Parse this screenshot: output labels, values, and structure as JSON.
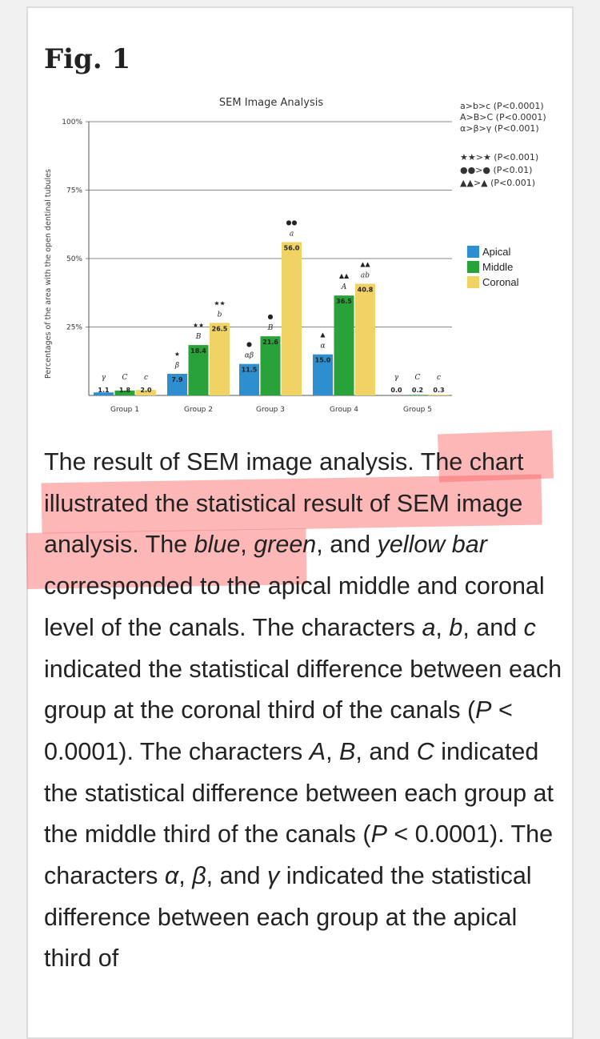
{
  "figure": {
    "title": "Fig. 1"
  },
  "chart_data": {
    "type": "bar",
    "title": "SEM Image Analysis",
    "ylabel": "Percentages of the area with the open dentinal tubules",
    "xlabel": "",
    "ylim": [
      0,
      100
    ],
    "yticks": [
      "100%",
      "75%",
      "50%",
      "25%"
    ],
    "grid": true,
    "legend_position": "right",
    "categories": [
      "Group 1",
      "Group 2",
      "Group 3",
      "Group 4",
      "Group 5"
    ],
    "series": [
      {
        "name": "Apical",
        "color": "#2e8fd0",
        "values": [
          1.1,
          7.9,
          11.5,
          15.0,
          0.0
        ],
        "labels": [
          "1.1",
          "7.9",
          "11.5",
          "15.0",
          "0.0"
        ]
      },
      {
        "name": "Middle",
        "color": "#2aa23a",
        "values": [
          1.8,
          18.4,
          21.6,
          36.5,
          0.2
        ],
        "labels": [
          "1.8",
          "18.4",
          "21.6",
          "36.5",
          "0.2"
        ]
      },
      {
        "name": "Coronal",
        "color": "#f1d264",
        "values": [
          2.0,
          26.5,
          56.0,
          40.8,
          0.3
        ],
        "labels": [
          "2.0",
          "26.5",
          "56.0",
          "40.8",
          "0.3"
        ]
      }
    ],
    "letters": [
      [
        "γ",
        "C",
        "c"
      ],
      [
        "β",
        "B",
        "b"
      ],
      [
        "αβ",
        "B",
        "a"
      ],
      [
        "α",
        "A",
        "ab"
      ],
      [
        "γ",
        "C",
        "c"
      ]
    ],
    "symbols": [
      [
        "",
        "",
        ""
      ],
      [
        "★",
        "★★",
        "★★"
      ],
      [
        "●",
        "●",
        "●●"
      ],
      [
        "▲",
        "▲▲",
        "▲▲"
      ],
      [
        "",
        "",
        ""
      ]
    ],
    "significance_notes": [
      "a>b>c (P<0.0001)",
      "A>B>C (P<0.0001)",
      "α>β>γ (P<0.001)",
      "★★>★ (P<0.001)",
      "●●>● (P<0.01)",
      "▲▲>▲ (P<0.001)"
    ]
  },
  "caption": {
    "parts": [
      {
        "text": "The result of SEM image analysis. The chart illustrated the statistical result of SEM image analysis. The ",
        "italic": false
      },
      {
        "text": "blue",
        "italic": true
      },
      {
        "text": ", ",
        "italic": false
      },
      {
        "text": "green",
        "italic": true
      },
      {
        "text": ", and ",
        "italic": false
      },
      {
        "text": "yellow bar",
        "italic": true
      },
      {
        "text": " corresponded to the apical middle and coronal level of the canals. The characters ",
        "italic": false
      },
      {
        "text": "a",
        "italic": true
      },
      {
        "text": ", ",
        "italic": false
      },
      {
        "text": "b",
        "italic": true
      },
      {
        "text": ", and ",
        "italic": false
      },
      {
        "text": "c",
        "italic": true
      },
      {
        "text": " indicated the statistical difference between each group at the coronal third of the canals (",
        "italic": false
      },
      {
        "text": "P",
        "italic": true
      },
      {
        "text": " < 0.0001). The characters ",
        "italic": false
      },
      {
        "text": "A",
        "italic": true
      },
      {
        "text": ", ",
        "italic": false
      },
      {
        "text": "B",
        "italic": true
      },
      {
        "text": ", and ",
        "italic": false
      },
      {
        "text": "C",
        "italic": true
      },
      {
        "text": " indicated the statistical difference between each group at the middle third of the canals (",
        "italic": false
      },
      {
        "text": "P",
        "italic": true
      },
      {
        "text": " < 0.0001). The characters ",
        "italic": false
      },
      {
        "text": "α",
        "italic": true
      },
      {
        "text": ", ",
        "italic": false
      },
      {
        "text": "β",
        "italic": true
      },
      {
        "text": ", and ",
        "italic": false
      },
      {
        "text": "γ",
        "italic": true
      },
      {
        "text": " indicated the statistical difference between each group at the apical third of",
        "italic": false
      }
    ]
  }
}
